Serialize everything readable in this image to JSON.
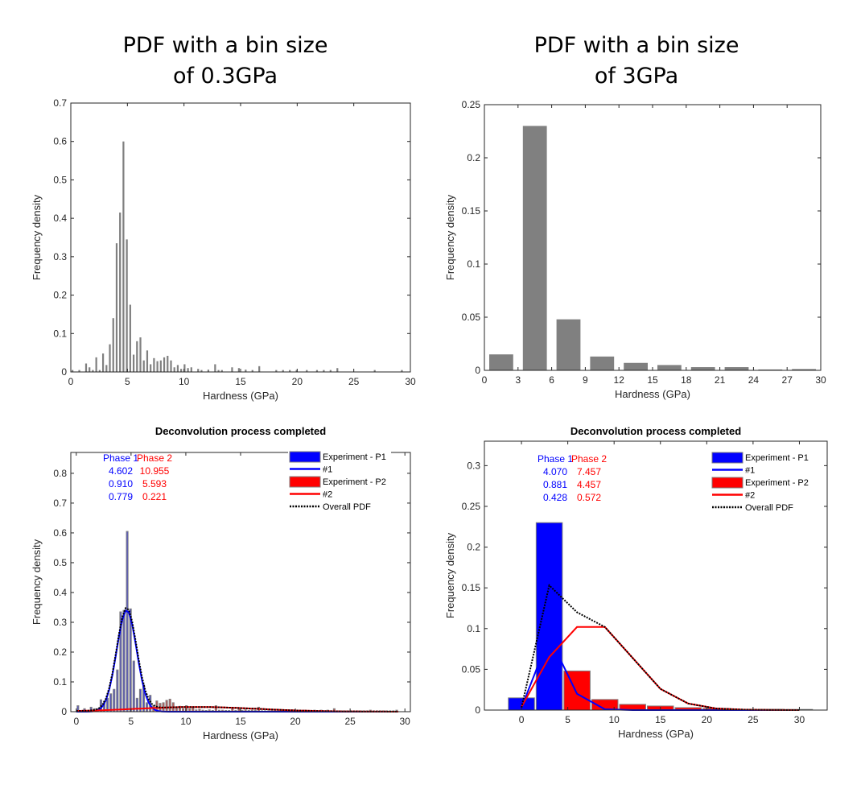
{
  "headings": {
    "left": [
      "PDF with a bin size",
      "of 0.3GPa"
    ],
    "right": [
      "PDF with a bin size",
      "of 3GPa"
    ]
  },
  "colors": {
    "gray_bar": "#808080",
    "phase1": "#0000ff",
    "phase2": "#ff0000",
    "fit2_curve": "#ff0000",
    "overall": "#000000",
    "axis": "#000000"
  },
  "chart_data": [
    {
      "id": "c1",
      "type": "bar",
      "title": "",
      "xlabel": "Hardness (GPa)",
      "ylabel": "Frequency density",
      "xlim": [
        0,
        30
      ],
      "ylim": [
        0,
        0.7
      ],
      "xticks": [
        0,
        5,
        10,
        15,
        20,
        25,
        30
      ],
      "yticks": [
        0,
        0.1,
        0.2,
        0.3,
        0.4,
        0.5,
        0.6,
        0.7
      ],
      "bin_width": 0.3,
      "bar_color": "#808080",
      "x": [
        0.15,
        0.75,
        1.35,
        1.65,
        1.95,
        2.25,
        2.55,
        2.85,
        3.15,
        3.45,
        3.75,
        4.05,
        4.35,
        4.65,
        4.95,
        5.25,
        5.55,
        5.85,
        6.15,
        6.45,
        6.75,
        7.05,
        7.35,
        7.65,
        7.95,
        8.25,
        8.55,
        8.85,
        9.15,
        9.45,
        9.75,
        10.05,
        10.35,
        10.65,
        11.25,
        11.55,
        12.15,
        12.75,
        13.05,
        13.35,
        14.25,
        14.85,
        15.45,
        16.05,
        16.65,
        18.15,
        18.75,
        19.35,
        19.95,
        20.85,
        21.75,
        22.35,
        22.95,
        23.55,
        26.85,
        29.25
      ],
      "values": [
        0.005,
        0.005,
        0.022,
        0.012,
        0.005,
        0.038,
        0.005,
        0.048,
        0.018,
        0.072,
        0.14,
        0.335,
        0.415,
        0.6,
        0.345,
        0.175,
        0.045,
        0.08,
        0.09,
        0.03,
        0.056,
        0.02,
        0.036,
        0.028,
        0.03,
        0.038,
        0.042,
        0.03,
        0.012,
        0.018,
        0.008,
        0.02,
        0.01,
        0.012,
        0.008,
        0.005,
        0.006,
        0.02,
        0.005,
        0.005,
        0.012,
        0.01,
        0.006,
        0.005,
        0.015,
        0.005,
        0.005,
        0.005,
        0.005,
        0.005,
        0.005,
        0.005,
        0.005,
        0.01,
        0.005,
        0.005
      ]
    },
    {
      "id": "c2",
      "type": "bar",
      "title": "",
      "xlabel": "Hardness (GPa)",
      "ylabel": "Frequency density",
      "xlim": [
        0,
        30
      ],
      "ylim": [
        0,
        0.25
      ],
      "xticks": [
        0,
        3,
        6,
        9,
        12,
        15,
        18,
        21,
        24,
        27,
        30
      ],
      "yticks": [
        0,
        0.05,
        0.1,
        0.15,
        0.2,
        0.25
      ],
      "bin_width": 3,
      "bar_color": "#808080",
      "x": [
        0,
        3,
        6,
        9,
        12,
        15,
        18,
        21,
        24,
        27
      ],
      "values": [
        0.015,
        0.23,
        0.048,
        0.013,
        0.007,
        0.005,
        0.003,
        0.003,
        0.0008,
        0.0012
      ]
    },
    {
      "id": "c3",
      "type": "bar",
      "title": "Deconvolution process completed",
      "xlabel": "Hardness (GPa)",
      "ylabel": "Frequency density",
      "xlim": [
        -0.5,
        30.5
      ],
      "ylim": [
        0,
        0.87
      ],
      "xticks": [
        0,
        5,
        10,
        15,
        20,
        25,
        30
      ],
      "yticks": [
        0,
        0.1,
        0.2,
        0.3,
        0.4,
        0.5,
        0.6,
        0.7,
        0.8
      ],
      "bin_width": 0.3,
      "phase_table": {
        "headers": [
          "Phase 1",
          "Phase 2"
        ],
        "phase1": [
          "4.602",
          "0.910",
          "0.779"
        ],
        "phase2": [
          "10.955",
          "5.593",
          "0.221"
        ]
      },
      "legend": {
        "position": "top-right",
        "entries": [
          "Experiment - P1",
          "#1",
          "Experiment - P2",
          "#2",
          "Overall PDF"
        ]
      },
      "bars_p1": {
        "x": [
          0.15,
          0.75,
          1.35,
          1.65,
          1.95,
          2.25,
          2.55,
          2.85,
          3.15,
          3.45,
          3.75,
          4.05,
          4.35,
          4.65,
          4.95,
          5.25,
          5.55,
          5.85,
          6.15,
          6.45,
          6.75
        ],
        "values": [
          0.02,
          0.01,
          0.015,
          0.01,
          0.01,
          0.04,
          0.035,
          0.045,
          0.06,
          0.075,
          0.14,
          0.335,
          0.34,
          0.605,
          0.345,
          0.17,
          0.045,
          0.075,
          0.09,
          0.03,
          0.055
        ]
      },
      "bars_p2": {
        "x": [
          7.05,
          7.35,
          7.65,
          7.95,
          8.25,
          8.55,
          8.85,
          9.15,
          9.45,
          9.75,
          10.05,
          10.35,
          10.65,
          10.95,
          11.25,
          11.55,
          11.85,
          12.15,
          12.45,
          12.75,
          13.05,
          13.35,
          13.65,
          13.95,
          14.25,
          14.55,
          14.85,
          15.15,
          15.45,
          15.75,
          16.05,
          16.35,
          16.65,
          16.95,
          17.25,
          17.55,
          17.85,
          18.15,
          18.45,
          18.75,
          19.05,
          19.35,
          19.65,
          19.95,
          20.25,
          20.55,
          20.85,
          21.15,
          21.45,
          21.75,
          22.05,
          22.35,
          22.65,
          22.95,
          23.25,
          23.55,
          23.85,
          24.15,
          24.45,
          24.75,
          25.05,
          25.35,
          25.65,
          25.95,
          26.25,
          26.55,
          26.85,
          27.15,
          27.45,
          27.75,
          28.05,
          28.35,
          28.65,
          28.95,
          29.25
        ],
        "values": [
          0.02,
          0.036,
          0.028,
          0.03,
          0.038,
          0.042,
          0.03,
          0.012,
          0.018,
          0.01,
          0.02,
          0.01,
          0.012,
          0.006,
          0.008,
          0.005,
          0.004,
          0.006,
          0.004,
          0.02,
          0.005,
          0.005,
          0.004,
          0.004,
          0.012,
          0.004,
          0.01,
          0.004,
          0.006,
          0.004,
          0.005,
          0.004,
          0.015,
          0.003,
          0.003,
          0.003,
          0.003,
          0.005,
          0.003,
          0.005,
          0.003,
          0.005,
          0.003,
          0.005,
          0.003,
          0.003,
          0.005,
          0.003,
          0.003,
          0.005,
          0.003,
          0.005,
          0.003,
          0.005,
          0.003,
          0.01,
          0.003,
          0.003,
          0.003,
          0.003,
          0.003,
          0.003,
          0.003,
          0.003,
          0.003,
          0.003,
          0.005,
          0.003,
          0.003,
          0.003,
          0.003,
          0.003,
          0.003,
          0.003,
          0.005
        ]
      },
      "curve1": {
        "mean": 4.602,
        "std": 0.91,
        "weight": 0.779
      },
      "curve2": {
        "mean": 10.955,
        "std": 5.593,
        "weight": 0.221
      }
    },
    {
      "id": "c4",
      "type": "bar",
      "title": "Deconvolution process completed",
      "xlabel": "Hardness (GPa)",
      "ylabel": "Frequency density",
      "xlim": [
        -4,
        33
      ],
      "ylim": [
        0,
        0.33
      ],
      "xticks": [
        0,
        5,
        10,
        15,
        20,
        25,
        30
      ],
      "yticks": [
        0,
        0.05,
        0.1,
        0.15,
        0.2,
        0.25,
        0.3
      ],
      "bin_width": 3,
      "phase_table": {
        "headers": [
          "Phase 1",
          "Phase 2"
        ],
        "phase1": [
          "4.070",
          "0.881",
          "0.428"
        ],
        "phase2": [
          "7.457",
          "4.457",
          "0.572"
        ]
      },
      "legend": {
        "position": "top-right",
        "entries": [
          "Experiment - P1",
          "#1",
          "Experiment - P2",
          "#2",
          "Overall PDF"
        ]
      },
      "bars_p1": {
        "x": [
          0,
          3
        ],
        "values": [
          0.015,
          0.23
        ]
      },
      "bars_p2": {
        "x": [
          6,
          9,
          12,
          15,
          18,
          21,
          24,
          27,
          30
        ],
        "values": [
          0.048,
          0.013,
          0.007,
          0.005,
          0.003,
          0.002,
          0.001,
          0.001,
          0.0008
        ]
      },
      "curve1_points": {
        "x": [
          0,
          3,
          6,
          9,
          12,
          15,
          18,
          21,
          24,
          27,
          30
        ],
        "y": [
          0.003,
          0.09,
          0.02,
          0.001,
          0,
          0,
          0,
          0,
          0,
          0,
          0
        ]
      },
      "curve2_points": {
        "x": [
          0,
          3,
          6,
          9,
          12,
          15,
          18,
          21,
          24,
          27,
          30
        ],
        "y": [
          0.004,
          0.065,
          0.102,
          0.102,
          0.064,
          0.026,
          0.008,
          0.002,
          0.0005,
          0.0001,
          0
        ]
      },
      "overall_points": {
        "x": [
          0,
          3,
          6,
          9,
          12,
          15,
          18,
          21,
          24,
          27,
          30
        ],
        "y": [
          0.003,
          0.153,
          0.12,
          0.102,
          0.064,
          0.026,
          0.008,
          0.002,
          0.0005,
          0.0001,
          0
        ]
      }
    }
  ]
}
